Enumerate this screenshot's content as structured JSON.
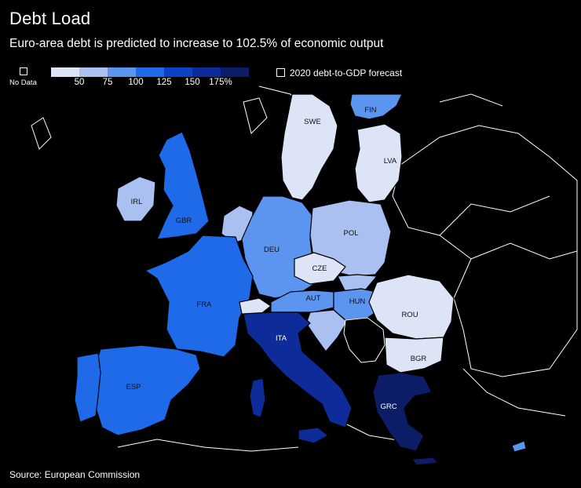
{
  "header": {
    "title": "Debt Load",
    "subtitle": "Euro-area debt is predicted to increase to 102.5% of economic output"
  },
  "legend": {
    "no_data_label": "No Data",
    "forecast_label": "2020 debt-to-GDP forecast",
    "scale_colors": [
      "#dde4f6",
      "#a9c0f1",
      "#5b95f0",
      "#1f6ae8",
      "#0b43c4",
      "#0e2c99",
      "#0d1c66"
    ],
    "scale_ticks": [
      "50",
      "75",
      "100",
      "125",
      "150",
      "175%"
    ]
  },
  "regions": [
    {
      "code": "SWE",
      "bucket": 0
    },
    {
      "code": "FIN",
      "bucket": 2
    },
    {
      "code": "LVA",
      "bucket": 0
    },
    {
      "code": "IRL",
      "bucket": 1
    },
    {
      "code": "GBR",
      "bucket": 3
    },
    {
      "code": "DEU",
      "bucket": 2
    },
    {
      "code": "POL",
      "bucket": 1
    },
    {
      "code": "CZE",
      "bucket": 0
    },
    {
      "code": "FRA",
      "bucket": 3
    },
    {
      "code": "AUT",
      "bucket": 2
    },
    {
      "code": "HUN",
      "bucket": 2
    },
    {
      "code": "ROU",
      "bucket": 0
    },
    {
      "code": "BGR",
      "bucket": 0
    },
    {
      "code": "ITA",
      "bucket": 5
    },
    {
      "code": "ESP",
      "bucket": 3
    },
    {
      "code": "GRC",
      "bucket": 6
    }
  ],
  "footer": {
    "source": "Source: European Commission"
  }
}
